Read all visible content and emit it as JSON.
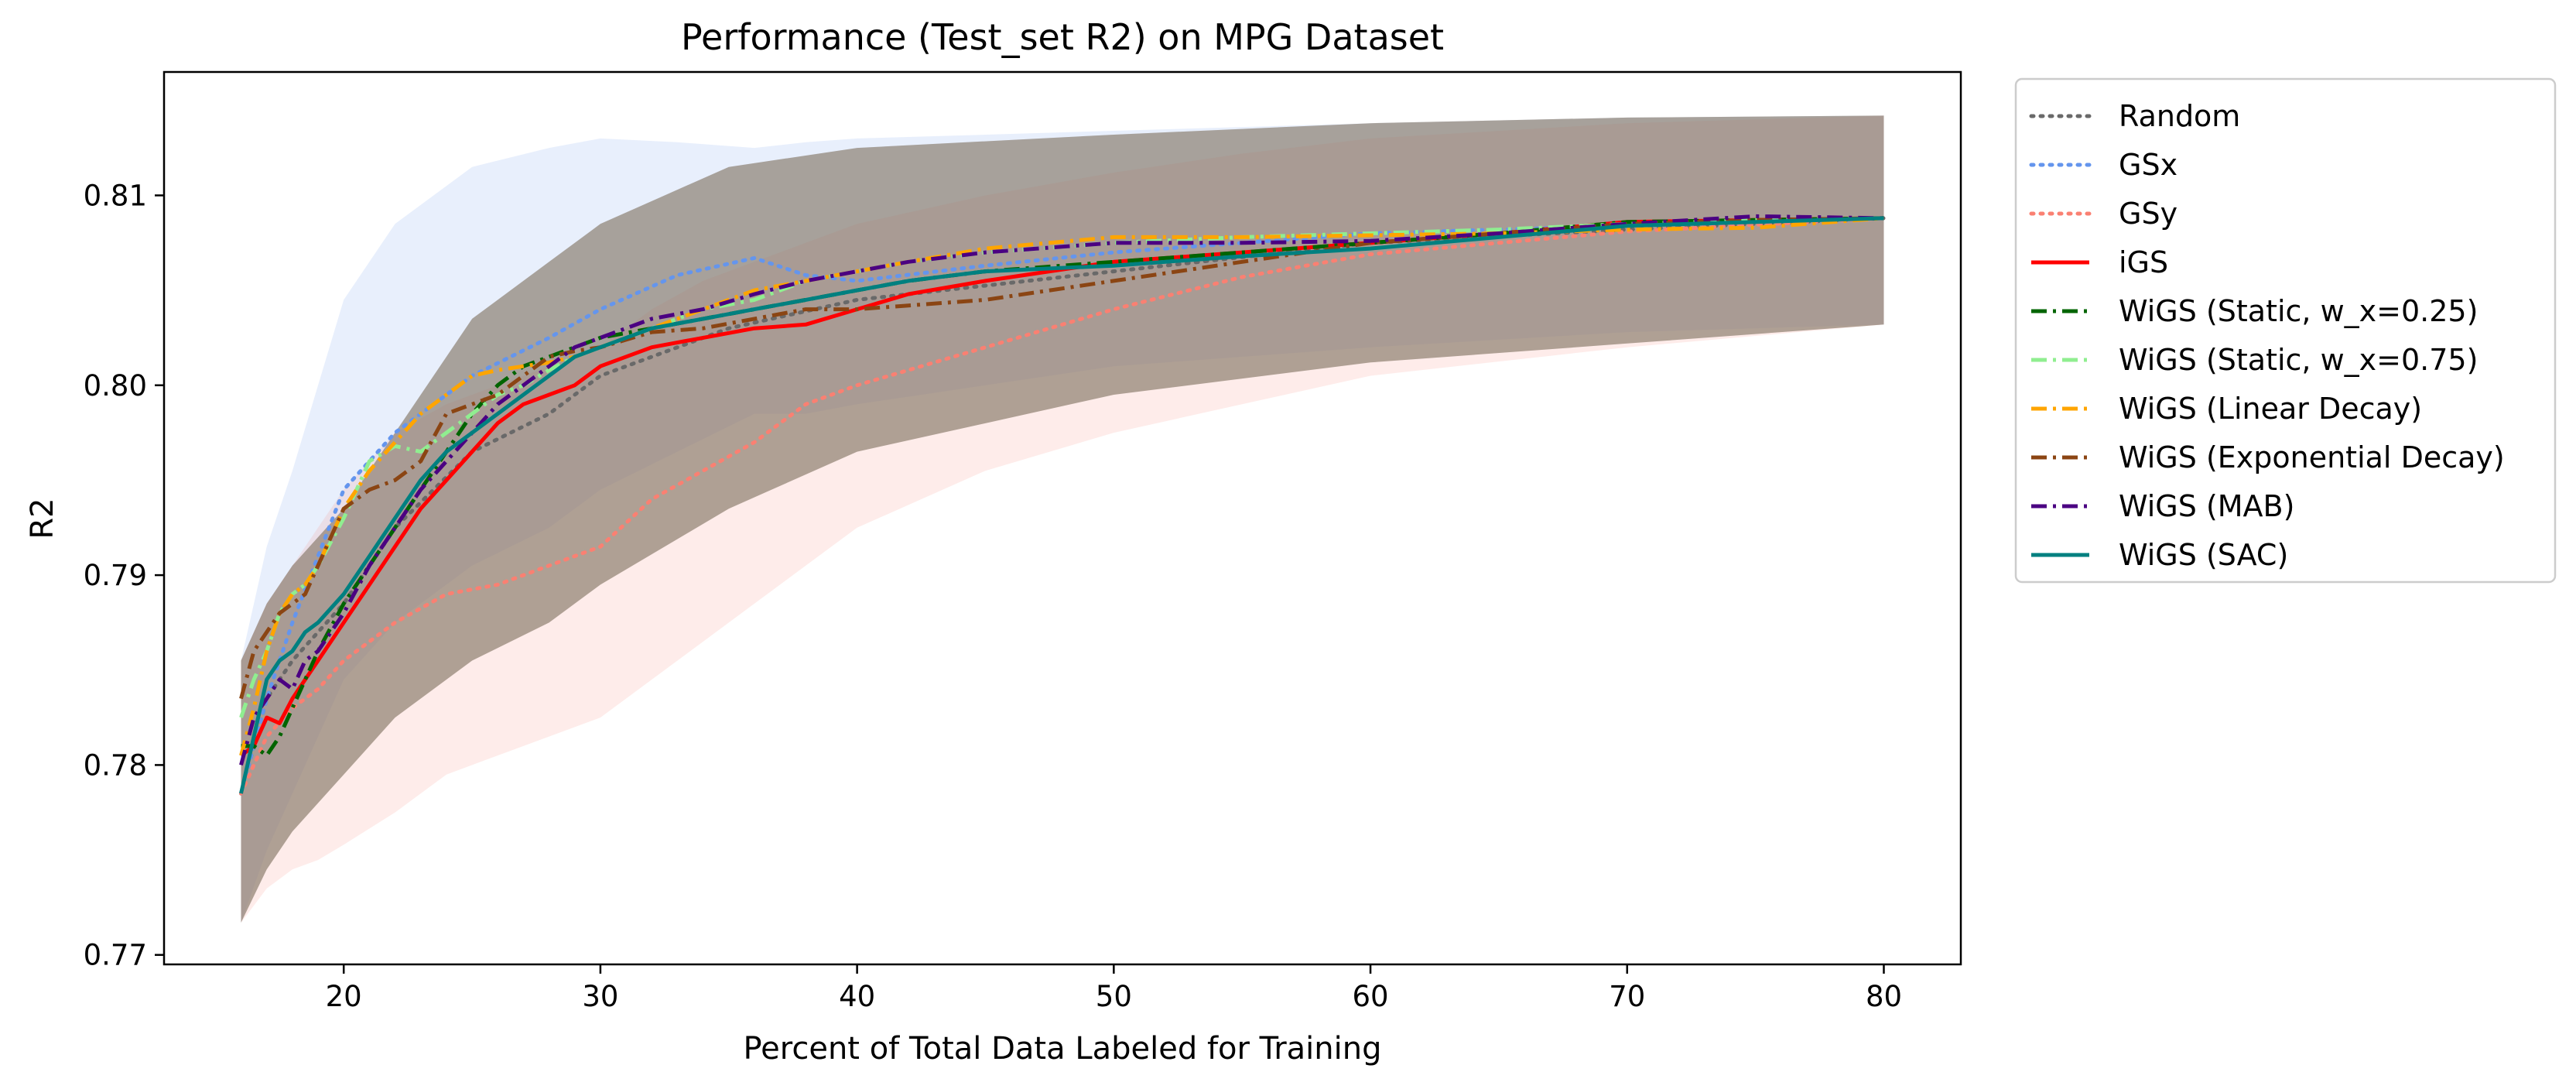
{
  "chart_data": {
    "type": "line",
    "title": "Performance (Test_set R2) on MPG Dataset",
    "xlabel": "Percent of Total Data Labeled for Training",
    "ylabel": "R2",
    "xlim": [
      13,
      83
    ],
    "ylim": [
      0.7695,
      0.8165
    ],
    "x_ticks": [
      20,
      30,
      40,
      50,
      60,
      70,
      80
    ],
    "x_tick_labels": [
      "20",
      "30",
      "40",
      "50",
      "60",
      "70",
      "80"
    ],
    "y_ticks": [
      0.77,
      0.78,
      0.79,
      0.8,
      0.81
    ],
    "y_tick_labels": [
      "0.77",
      "0.78",
      "0.79",
      "0.80",
      "0.81"
    ],
    "grid": false,
    "legend_position": "outside-right",
    "series": [
      {
        "name": "Random",
        "color": "#696969",
        "dash": "dotted",
        "x": [
          16,
          17,
          18,
          20,
          22,
          25,
          28,
          30,
          35,
          40,
          50,
          60,
          70,
          80
        ],
        "y": [
          0.7785,
          0.7835,
          0.7855,
          0.7885,
          0.7925,
          0.7965,
          0.7985,
          0.8005,
          0.803,
          0.8045,
          0.806,
          0.8075,
          0.8082,
          0.8088
        ],
        "band": [
          [
            0.7717,
            0.7855
          ],
          [
            0.7745,
            0.7885
          ],
          [
            0.7765,
            0.7905
          ],
          [
            0.7795,
            0.7935
          ],
          [
            0.7825,
            0.7975
          ],
          [
            0.7855,
            0.8035
          ],
          [
            0.7875,
            0.8065
          ],
          [
            0.7895,
            0.8085
          ],
          [
            0.7935,
            0.8115
          ],
          [
            0.7965,
            0.8125
          ],
          [
            0.7995,
            0.8132
          ],
          [
            0.8012,
            0.8138
          ],
          [
            0.8022,
            0.8141
          ],
          [
            0.8032,
            0.8142
          ]
        ]
      },
      {
        "name": "GSx",
        "color": "#6495ED",
        "dash": "dotted",
        "x": [
          16,
          17,
          18,
          20,
          22,
          25,
          28,
          30,
          33,
          36,
          38,
          40,
          45,
          50,
          60,
          70,
          80
        ],
        "y": [
          0.7785,
          0.7835,
          0.7875,
          0.7945,
          0.7975,
          0.8005,
          0.8025,
          0.804,
          0.8058,
          0.8067,
          0.8058,
          0.8055,
          0.8063,
          0.807,
          0.808,
          0.8084,
          0.8088
        ],
        "band": [
          [
            0.7717,
            0.7855
          ],
          [
            0.7755,
            0.7915
          ],
          [
            0.7785,
            0.7955
          ],
          [
            0.7845,
            0.8045
          ],
          [
            0.7875,
            0.8085
          ],
          [
            0.7905,
            0.8115
          ],
          [
            0.7925,
            0.8125
          ],
          [
            0.7945,
            0.813
          ],
          [
            0.7965,
            0.8128
          ],
          [
            0.7985,
            0.8125
          ],
          [
            0.7985,
            0.8128
          ],
          [
            0.799,
            0.813
          ],
          [
            0.8,
            0.8132
          ],
          [
            0.801,
            0.8134
          ],
          [
            0.802,
            0.8138
          ],
          [
            0.8028,
            0.8141
          ],
          [
            0.8032,
            0.8142
          ]
        ]
      },
      {
        "name": "GSy",
        "color": "#FA8072",
        "dash": "dotted",
        "x": [
          16,
          17,
          18,
          19,
          20,
          22,
          24,
          26,
          28,
          30,
          32,
          34,
          36,
          38,
          40,
          45,
          50,
          55,
          60,
          70,
          80
        ],
        "y": [
          0.7785,
          0.7815,
          0.783,
          0.784,
          0.7855,
          0.7875,
          0.789,
          0.7895,
          0.7905,
          0.7915,
          0.794,
          0.7955,
          0.797,
          0.799,
          0.8,
          0.802,
          0.804,
          0.8057,
          0.8069,
          0.8081,
          0.8088
        ],
        "band": [
          [
            0.7717,
            0.7855
          ],
          [
            0.7735,
            0.7885
          ],
          [
            0.7745,
            0.7905
          ],
          [
            0.775,
            0.7925
          ],
          [
            0.7758,
            0.7945
          ],
          [
            0.7775,
            0.7975
          ],
          [
            0.7795,
            0.799
          ],
          [
            0.7805,
            0.8
          ],
          [
            0.7815,
            0.801
          ],
          [
            0.7825,
            0.802
          ],
          [
            0.7845,
            0.804
          ],
          [
            0.7865,
            0.8055
          ],
          [
            0.7885,
            0.8065
          ],
          [
            0.7905,
            0.8075
          ],
          [
            0.7925,
            0.8085
          ],
          [
            0.7955,
            0.81
          ],
          [
            0.7975,
            0.8112
          ],
          [
            0.799,
            0.8122
          ],
          [
            0.8005,
            0.813
          ],
          [
            0.802,
            0.8138
          ],
          [
            0.8032,
            0.8142
          ]
        ]
      },
      {
        "name": "iGS",
        "color": "#FF0000",
        "dash": "solid",
        "x": [
          16,
          16.5,
          17,
          17.5,
          18,
          18.5,
          19,
          20,
          21,
          22,
          23,
          24,
          25,
          26,
          27,
          28,
          29,
          30,
          32,
          34,
          36,
          38,
          40,
          42,
          45,
          50,
          55,
          60,
          65,
          70,
          75,
          80
        ],
        "y": [
          0.7805,
          0.781,
          0.7825,
          0.7822,
          0.7835,
          0.7845,
          0.7855,
          0.7875,
          0.7895,
          0.7915,
          0.7935,
          0.795,
          0.7965,
          0.798,
          0.799,
          0.7995,
          0.8,
          0.801,
          0.802,
          0.8025,
          0.803,
          0.8032,
          0.804,
          0.8048,
          0.8055,
          0.8065,
          0.807,
          0.8075,
          0.808,
          0.8086,
          0.8087,
          0.8088
        ]
      },
      {
        "name": "WiGS (Static, w_x=0.25)",
        "color": "#006400",
        "dash": "dashdot",
        "x": [
          16,
          16.5,
          17,
          17.5,
          18,
          18.5,
          19,
          20,
          21,
          22,
          23,
          24,
          25,
          26,
          27,
          28,
          29,
          30,
          32,
          34,
          36,
          38,
          40,
          42,
          45,
          50,
          55,
          60,
          65,
          70,
          75,
          80
        ],
        "y": [
          0.781,
          0.781,
          0.7805,
          0.7815,
          0.783,
          0.7845,
          0.786,
          0.7885,
          0.7905,
          0.7925,
          0.7945,
          0.7965,
          0.7985,
          0.8,
          0.801,
          0.8015,
          0.802,
          0.8025,
          0.803,
          0.8035,
          0.804,
          0.8045,
          0.805,
          0.8055,
          0.806,
          0.8065,
          0.807,
          0.8075,
          0.808,
          0.8086,
          0.8087,
          0.8088
        ]
      },
      {
        "name": "WiGS (Static, w_x=0.75)",
        "color": "#90EE90",
        "dash": "dashdot",
        "x": [
          16,
          16.5,
          17,
          17.5,
          18,
          18.5,
          19,
          20,
          21,
          22,
          23,
          24,
          25,
          26,
          27,
          28,
          29,
          30,
          32,
          34,
          36,
          38,
          40,
          42,
          45,
          50,
          55,
          60,
          65,
          70,
          75,
          80
        ],
        "y": [
          0.7825,
          0.7845,
          0.786,
          0.788,
          0.789,
          0.7895,
          0.7905,
          0.793,
          0.796,
          0.7968,
          0.7965,
          0.7975,
          0.7985,
          0.7995,
          0.8,
          0.8008,
          0.8015,
          0.802,
          0.803,
          0.804,
          0.8045,
          0.8055,
          0.806,
          0.8065,
          0.807,
          0.8075,
          0.8078,
          0.808,
          0.8082,
          0.8085,
          0.8087,
          0.8088
        ]
      },
      {
        "name": "WiGS (Linear Decay)",
        "color": "#FFA500",
        "dash": "dashdot",
        "x": [
          16,
          16.5,
          17,
          17.5,
          18,
          18.5,
          19,
          20,
          21,
          22,
          23,
          24,
          25,
          26,
          27,
          28,
          29,
          30,
          32,
          34,
          36,
          38,
          40,
          42,
          45,
          50,
          55,
          60,
          65,
          70,
          75,
          80
        ],
        "y": [
          0.7805,
          0.783,
          0.786,
          0.788,
          0.789,
          0.7895,
          0.7905,
          0.7935,
          0.7955,
          0.797,
          0.7985,
          0.7995,
          0.8005,
          0.8008,
          0.801,
          0.8012,
          0.8015,
          0.802,
          0.803,
          0.804,
          0.805,
          0.8055,
          0.806,
          0.8065,
          0.8072,
          0.8078,
          0.8078,
          0.8079,
          0.808,
          0.8082,
          0.8083,
          0.8088
        ]
      },
      {
        "name": "WiGS (Exponential Decay)",
        "color": "#8B4513",
        "dash": "dashdot",
        "x": [
          16,
          16.5,
          17,
          17.5,
          18,
          18.5,
          19,
          20,
          21,
          22,
          23,
          24,
          25,
          26,
          27,
          28,
          29,
          30,
          32,
          34,
          36,
          38,
          40,
          42,
          45,
          50,
          55,
          60,
          65,
          70,
          75,
          80
        ],
        "y": [
          0.7835,
          0.786,
          0.787,
          0.788,
          0.7885,
          0.789,
          0.7905,
          0.7935,
          0.7945,
          0.795,
          0.796,
          0.7985,
          0.799,
          0.7995,
          0.8005,
          0.8015,
          0.8018,
          0.802,
          0.8028,
          0.803,
          0.8035,
          0.804,
          0.804,
          0.8042,
          0.8045,
          0.8055,
          0.8065,
          0.8075,
          0.808,
          0.8085,
          0.8087,
          0.8088
        ]
      },
      {
        "name": "WiGS (MAB)",
        "color": "#4B0082",
        "dash": "dashdot",
        "x": [
          16,
          16.5,
          17,
          17.5,
          18,
          18.5,
          19,
          20,
          21,
          22,
          23,
          24,
          25,
          26,
          27,
          28,
          29,
          30,
          32,
          34,
          36,
          38,
          40,
          42,
          45,
          50,
          55,
          60,
          65,
          70,
          75,
          80
        ],
        "y": [
          0.78,
          0.7825,
          0.7835,
          0.7845,
          0.784,
          0.7855,
          0.786,
          0.788,
          0.7905,
          0.7925,
          0.7945,
          0.796,
          0.7975,
          0.799,
          0.8,
          0.801,
          0.802,
          0.8025,
          0.8035,
          0.804,
          0.8048,
          0.8055,
          0.806,
          0.8065,
          0.807,
          0.8075,
          0.8075,
          0.8076,
          0.808,
          0.8085,
          0.8089,
          0.8088
        ]
      },
      {
        "name": "WiGS (SAC)",
        "color": "#008080",
        "dash": "solid",
        "x": [
          16,
          16.5,
          17,
          17.5,
          18,
          18.5,
          19,
          20,
          21,
          22,
          23,
          24,
          25,
          26,
          27,
          28,
          29,
          30,
          32,
          34,
          36,
          38,
          40,
          42,
          45,
          50,
          55,
          60,
          65,
          70,
          75,
          80
        ],
        "y": [
          0.7785,
          0.7815,
          0.7845,
          0.7855,
          0.786,
          0.787,
          0.7875,
          0.789,
          0.791,
          0.793,
          0.795,
          0.7965,
          0.7975,
          0.7985,
          0.7995,
          0.8005,
          0.8015,
          0.802,
          0.803,
          0.8035,
          0.804,
          0.8045,
          0.805,
          0.8055,
          0.806,
          0.8063,
          0.8068,
          0.8072,
          0.8078,
          0.8084,
          0.8086,
          0.8088
        ]
      }
    ]
  }
}
